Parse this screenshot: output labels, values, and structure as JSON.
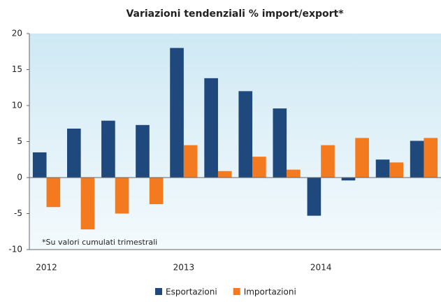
{
  "chart_data": {
    "type": "bar",
    "title": "Variazioni tendenziali % import/export*",
    "annotation": "*Su valori cumulati trimestrali",
    "categories": [
      "2012",
      null,
      null,
      null,
      "2013",
      null,
      null,
      null,
      "2014",
      null,
      null,
      null
    ],
    "series": [
      {
        "name": "Esportazioni",
        "color": "#1f497d",
        "values": [
          3.5,
          6.8,
          7.9,
          7.3,
          18,
          13.8,
          12,
          9.6,
          -5.3,
          -0.4,
          2.5,
          5.1
        ]
      },
      {
        "name": "Importazioni",
        "color": "#f47a20",
        "values": [
          -4.1,
          -7.2,
          -5,
          -3.7,
          4.5,
          0.9,
          2.9,
          1.1,
          4.5,
          5.5,
          2.1,
          5.5
        ]
      }
    ],
    "ylim": [
      -10,
      20
    ],
    "yticks": [
      -10,
      -5,
      0,
      5,
      10,
      15,
      20
    ],
    "grid": false,
    "legend": "bottom"
  }
}
